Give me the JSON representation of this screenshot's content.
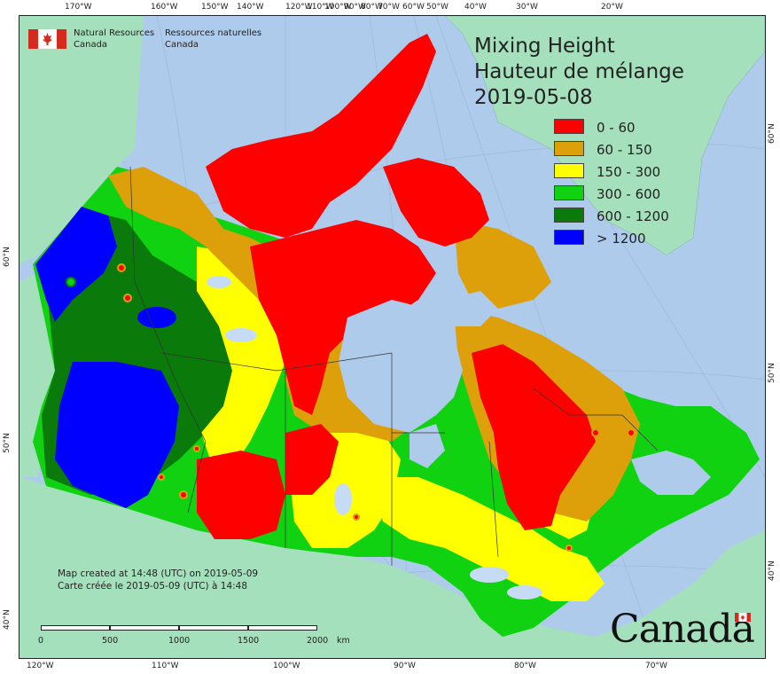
{
  "title": {
    "line1": "Mixing Height",
    "line2": "Hauteur de mélange",
    "date": "2019-05-08"
  },
  "legend": {
    "items": [
      {
        "label": "0 - 60",
        "color": "#ff0000"
      },
      {
        "label": "60 - 150",
        "color": "#dd9f0a"
      },
      {
        "label": "150 - 300",
        "color": "#ffff00"
      },
      {
        "label": "300 - 600",
        "color": "#11d211"
      },
      {
        "label": "600 - 1200",
        "color": "#0a7a0a"
      },
      {
        "label": "> 1200",
        "color": "#0000ff"
      }
    ]
  },
  "agency": {
    "name_en_line1": "Natural Resources",
    "name_en_line2": "Canada",
    "name_fr_line1": "Ressources naturelles",
    "name_fr_line2": "Canada"
  },
  "credits": {
    "created_en": "Map created at 14:48 (UTC) on 2019-05-09",
    "created_fr": "Carte créée le 2019-05-09 (UTC) à 14:48"
  },
  "scale": {
    "labels": [
      "0",
      "500",
      "1000",
      "1500",
      "2000"
    ],
    "unit": "km"
  },
  "wordmark": "Canada",
  "graticule": {
    "top": [
      "170°W",
      "160°W",
      "150°W",
      "140°W",
      "120°W",
      "110°W",
      "100°W",
      "90°W",
      "80°W",
      "70°W",
      "60°W",
      "50°W",
      "40°W",
      "30°W",
      "20°W"
    ],
    "bottom": [
      "120°W",
      "110°W",
      "100°W",
      "90°W",
      "80°W",
      "70°W"
    ],
    "left": [
      "60°N",
      "50°N",
      "40°N"
    ],
    "right": [
      "60°N",
      "50°N",
      "40°N"
    ]
  },
  "colors": {
    "ocean": "#aecbeb",
    "land_outside": "#a4e0bc",
    "water_inland": "#c6dcf5"
  }
}
